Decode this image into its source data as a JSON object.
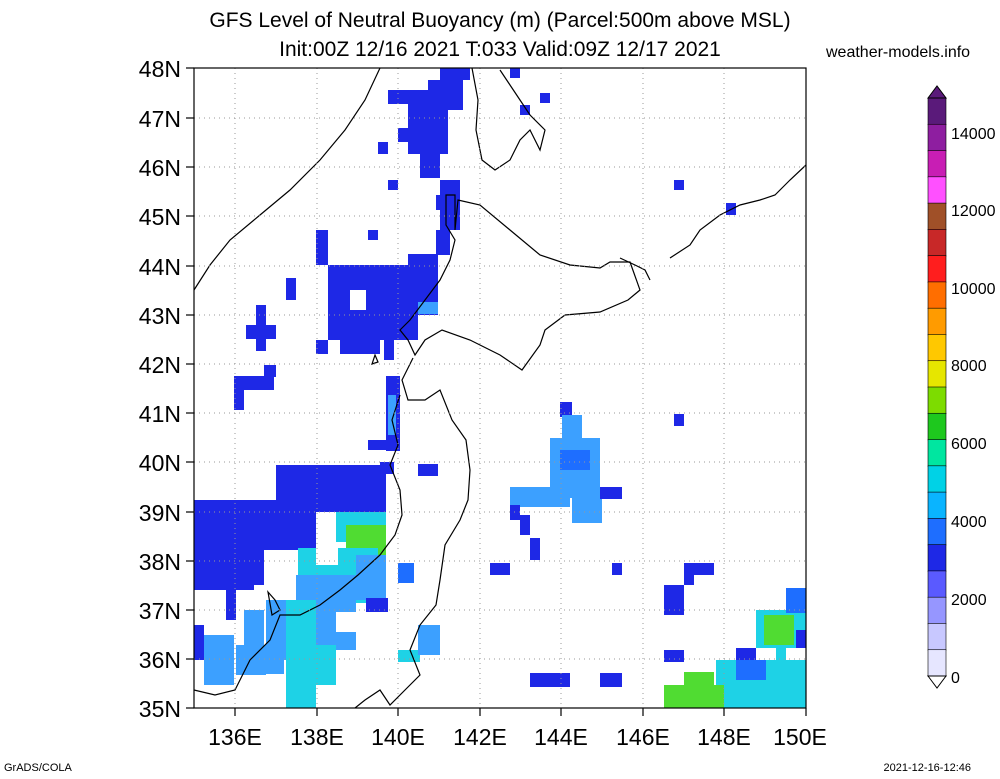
{
  "title_line1": "GFS Level of Neutral Buoyancy (m) (Parcel:500m above MSL)",
  "title_line2": "Init:00Z 12/16 2021 T:033 Valid:09Z 12/17 2021",
  "site": "weather-models.info",
  "footer_left": "GrADS/COLA",
  "footer_right": "2021-12-16-12:46",
  "lat_labels": [
    "48N",
    "47N",
    "46N",
    "45N",
    "44N",
    "43N",
    "42N",
    "41N",
    "40N",
    "39N",
    "38N",
    "37N",
    "36N",
    "35N"
  ],
  "lon_labels": [
    "136E",
    "138E",
    "140E",
    "142E",
    "144E",
    "146E",
    "148E",
    "150E"
  ],
  "colorbar": {
    "labels": [
      "14000",
      "12000",
      "10000",
      "8000",
      "6000",
      "4000",
      "2000",
      "0"
    ],
    "colors": [
      "#5a1a7a",
      "#8e1ea0",
      "#c81eb4",
      "#ff50ff",
      "#a05028",
      "#c82828",
      "#ff1e1e",
      "#ff6e00",
      "#ff9b00",
      "#ffc800",
      "#e6e600",
      "#7ddc00",
      "#1ec81e",
      "#00e6a0",
      "#00d2e6",
      "#0ab4ff",
      "#1e6eff",
      "#1e28e6",
      "#5a5aff",
      "#9696ff",
      "#c8c8ff",
      "#e6e6ff"
    ]
  },
  "colors": {
    "blue": "#1e28e6",
    "lightblue": "#3ca0ff",
    "cyan": "#1ed2e6",
    "green": "#50dc32"
  }
}
